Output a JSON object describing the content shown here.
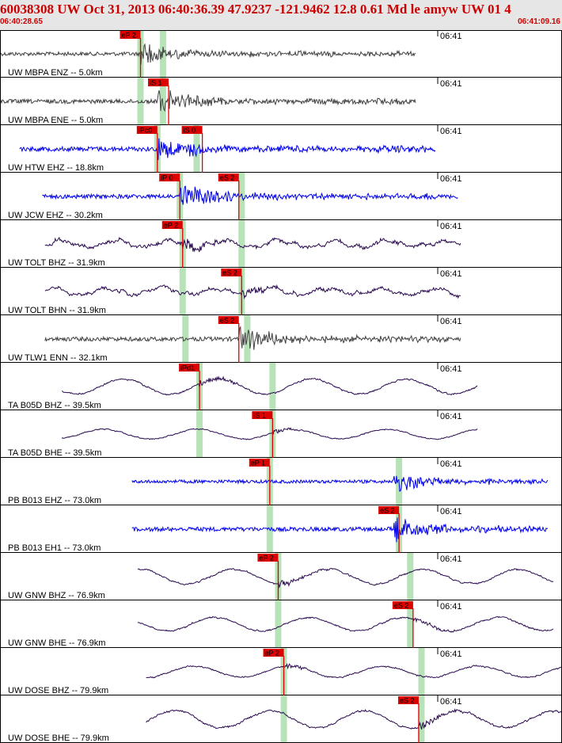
{
  "header": {
    "title": "60038308 UW Oct 31, 2013 06:40:36.39   47.9237 -121.9462 12.8 0.61 Md le amyw UW 01   4",
    "start_time": "06:40:28.65",
    "end_time": "06:41:09.16"
  },
  "colors": {
    "header_bg": "#e6e6e6",
    "header_text": "#cc0000",
    "pick_fill": "#dd0000",
    "window_fill": "#b8e2b8",
    "trace_gray": "#404040",
    "trace_blue": "#0000ee",
    "trace_purple": "#2a0a50"
  },
  "chart_data": {
    "type": "seismogram-record",
    "time_range": [
      "06:40:28.65",
      "06:41:09.16"
    ],
    "minute_tick_label": "06:41",
    "traces": [
      {
        "label": "UW MBPA ENZ -- 5.0km",
        "pick": "eP 2",
        "color": "gray",
        "style": "hf",
        "pick_t": 0.25,
        "window_ts": [
          0.25,
          0.29
        ],
        "start": 0.0,
        "end": 0.74,
        "onset": 0.25,
        "amp": 0.45
      },
      {
        "label": "UW MBPA ENE -- 5.0km",
        "pick": "iS 1",
        "color": "gray",
        "style": "hf",
        "pick_t": 0.3,
        "window_ts": [
          0.25,
          0.29
        ],
        "start": 0.0,
        "end": 0.74,
        "onset": 0.28,
        "amp": 0.5
      },
      {
        "label": "UW HTW EHZ -- 18.8km",
        "pick": "iPc0",
        "pick2": "iS 0",
        "color": "blue",
        "style": "hf",
        "pick_t": 0.28,
        "pick2_t": 0.36,
        "window_ts": [
          0.28,
          0.35
        ],
        "start": 0.035,
        "end": 0.775,
        "onset": 0.28,
        "amp": 0.55
      },
      {
        "label": "UW JCW EHZ -- 30.2km",
        "pick": "iP 0",
        "pick2": "eS 2",
        "color": "blue",
        "style": "hf",
        "pick_t": 0.32,
        "pick2_t": 0.425,
        "window_ts": [
          0.32,
          0.43
        ],
        "start": 0.075,
        "end": 0.815,
        "onset": 0.32,
        "amp": 0.5
      },
      {
        "label": "UW TOLT BHZ -- 31.9km",
        "pick": "eP 2",
        "color": "purple",
        "style": "lf",
        "pick_t": 0.325,
        "window_ts": [
          0.325,
          0.43
        ],
        "start": 0.08,
        "end": 0.82,
        "onset": 0.325,
        "amp": 0.3
      },
      {
        "label": "UW TOLT BHN -- 31.9km",
        "pick": "eS 2",
        "color": "purple",
        "style": "lf",
        "pick_t": 0.43,
        "window_ts": [
          0.325,
          0.43
        ],
        "start": 0.08,
        "end": 0.82,
        "onset": 0.43,
        "amp": 0.28
      },
      {
        "label": "UW TLW1 ENN -- 32.1km",
        "pick": "eS 2",
        "color": "gray",
        "style": "hf",
        "pick_t": 0.425,
        "window_ts": [
          0.33,
          0.44
        ],
        "start": 0.08,
        "end": 0.82,
        "onset": 0.425,
        "amp": 0.5
      },
      {
        "label": "TA B05D BHZ -- 39.5km",
        "pick": "iPd1",
        "color": "purple",
        "style": "lp",
        "pick_t": 0.355,
        "window_ts": [
          0.355,
          0.485
        ],
        "start": 0.11,
        "end": 0.85,
        "onset": 0.355,
        "amp": 0.4
      },
      {
        "label": "TA B05D BHE -- 39.5km",
        "pick": "iS 1",
        "color": "purple",
        "style": "lp",
        "pick_t": 0.485,
        "window_ts": [
          0.355,
          0.485
        ],
        "start": 0.11,
        "end": 0.85,
        "onset": 0.485,
        "amp": 0.25
      },
      {
        "label": "PB B013 EHZ -- 73.0km",
        "pick": "eP 1",
        "color": "blue",
        "style": "hf",
        "pick_t": 0.48,
        "window_ts": [
          0.48,
          0.71
        ],
        "start": 0.235,
        "end": 0.975,
        "onset": 0.7,
        "amp": 0.4
      },
      {
        "label": "PB B013 EH1 -- 73.0km",
        "pick": "eS 2",
        "color": "blue",
        "style": "hf",
        "pick_t": 0.71,
        "window_ts": [
          0.48,
          0.71
        ],
        "start": 0.235,
        "end": 0.975,
        "onset": 0.7,
        "amp": 0.5
      },
      {
        "label": "UW GNW BHZ -- 76.9km",
        "pick": "eP 2",
        "color": "purple",
        "style": "lp",
        "pick_t": 0.495,
        "window_ts": [
          0.495,
          0.73
        ],
        "start": 0.245,
        "end": 0.985,
        "onset": 0.495,
        "amp": 0.38
      },
      {
        "label": "UW GNW BHE -- 76.9km",
        "pick": "eS 2",
        "color": "purple",
        "style": "lp",
        "pick_t": 0.735,
        "window_ts": [
          0.495,
          0.73
        ],
        "start": 0.245,
        "end": 0.985,
        "onset": 0.735,
        "amp": 0.35
      },
      {
        "label": "UW DOSE BHZ -- 79.9km",
        "pick": "eP 2",
        "color": "purple",
        "style": "lp",
        "pick_t": 0.505,
        "window_ts": [
          0.505,
          0.75
        ],
        "start": 0.26,
        "end": 1.0,
        "onset": 0.505,
        "amp": 0.3
      },
      {
        "label": "UW DOSE BHE -- 79.9km",
        "pick": "eS 2",
        "color": "purple",
        "style": "lp",
        "pick_t": 0.745,
        "window_ts": [
          0.505,
          0.75
        ],
        "start": 0.26,
        "end": 1.0,
        "onset": 0.745,
        "amp": 0.45
      }
    ]
  }
}
